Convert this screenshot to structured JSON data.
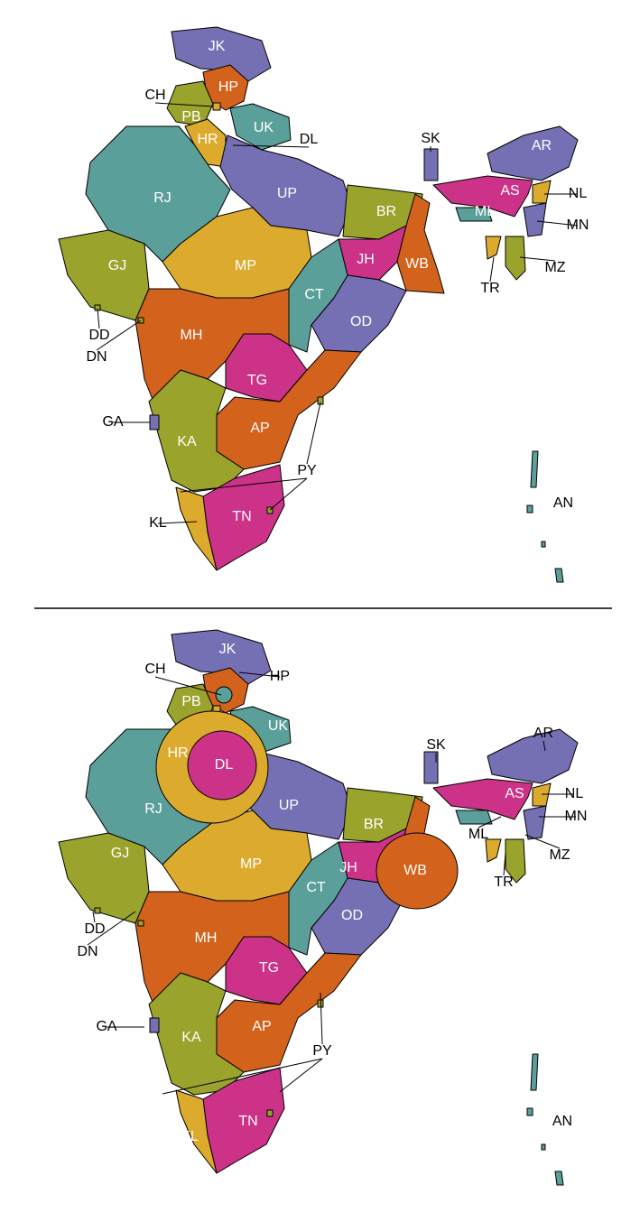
{
  "maps": [
    {
      "labels": [
        "JK",
        "HP",
        "CH",
        "PB",
        "UK",
        "HR",
        "DL",
        "RJ",
        "UP",
        "GJ",
        "MP",
        "BR",
        "JH",
        "WB",
        "OD",
        "CT",
        "MH",
        "TG",
        "AP",
        "KA",
        "GA",
        "TN",
        "KL",
        "PY",
        "AR",
        "AS",
        "ML",
        "NL",
        "MN",
        "MZ",
        "TR",
        "SK",
        "DD",
        "DN",
        "AN"
      ]
    },
    {
      "labels": [
        "JK",
        "HP",
        "CH",
        "PB",
        "UK",
        "HR",
        "DL",
        "RJ",
        "UP",
        "GJ",
        "MP",
        "BR",
        "JH",
        "WB",
        "OD",
        "CT",
        "MH",
        "TG",
        "AP",
        "KA",
        "GA",
        "TN",
        "KL",
        "PY",
        "AR",
        "AS",
        "ML",
        "NL",
        "MN",
        "MZ",
        "TR",
        "SK",
        "DD",
        "DN",
        "AN"
      ]
    }
  ]
}
